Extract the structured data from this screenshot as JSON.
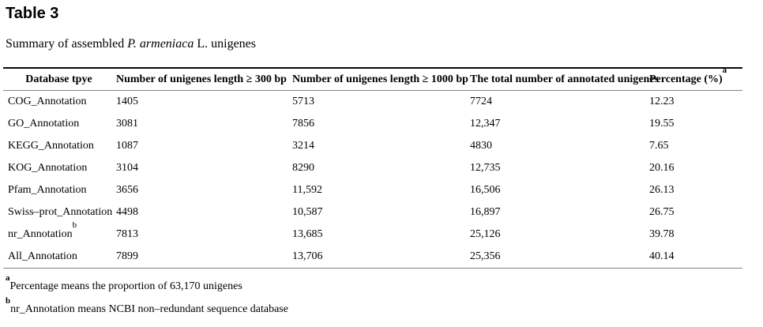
{
  "page": {
    "title": "Table 3",
    "caption": {
      "prefix": "Summary of assembled ",
      "italic": "P. armeniaca",
      "suffix": " L. unigenes"
    }
  },
  "table": {
    "columns": [
      "database",
      "len300",
      "len1000",
      "total",
      "percentage"
    ],
    "headers": [
      {
        "key": "database",
        "label": "Database tpye",
        "sup": ""
      },
      {
        "key": "len300",
        "label": "Number of unigenes length ≥ 300 bp",
        "sup": ""
      },
      {
        "key": "len1000",
        "label": "Number of unigenes length ≥ 1000 bp",
        "sup": ""
      },
      {
        "key": "total",
        "label": "The total number of annotated unigenes",
        "sup": ""
      },
      {
        "key": "percentage",
        "label": "Percentage (%)",
        "sup": "a"
      }
    ],
    "rows": [
      {
        "database": "COG_Annotation",
        "database_sup": "",
        "len300": "1405",
        "len1000": "5713",
        "total": "7724",
        "percentage": "12.23"
      },
      {
        "database": "GO_Annotation",
        "database_sup": "",
        "len300": "3081",
        "len1000": "7856",
        "total": "12,347",
        "percentage": "19.55"
      },
      {
        "database": "KEGG_Annotation",
        "database_sup": "",
        "len300": "1087",
        "len1000": "3214",
        "total": "4830",
        "percentage": "7.65"
      },
      {
        "database": "KOG_Annotation",
        "database_sup": "",
        "len300": "3104",
        "len1000": "8290",
        "total": "12,735",
        "percentage": "20.16"
      },
      {
        "database": "Pfam_Annotation",
        "database_sup": "",
        "len300": "3656",
        "len1000": "11,592",
        "total": "16,506",
        "percentage": "26.13"
      },
      {
        "database": "Swiss–prot_Annotation",
        "database_sup": "",
        "len300": "4498",
        "len1000": "10,587",
        "total": "16,897",
        "percentage": "26.75"
      },
      {
        "database": "nr_Annotation",
        "database_sup": "b",
        "len300": "7813",
        "len1000": "13,685",
        "total": "25,126",
        "percentage": "39.78"
      },
      {
        "database": "All_Annotation",
        "database_sup": "",
        "len300": "7899",
        "len1000": "13,706",
        "total": "25,356",
        "percentage": "40.14"
      }
    ]
  },
  "footnotes": [
    {
      "marker": "a",
      "text": "Percentage means the proportion of 63,170 unigenes"
    },
    {
      "marker": "b",
      "text": "nr_Annotation means NCBI non–redundant sequence database"
    }
  ]
}
